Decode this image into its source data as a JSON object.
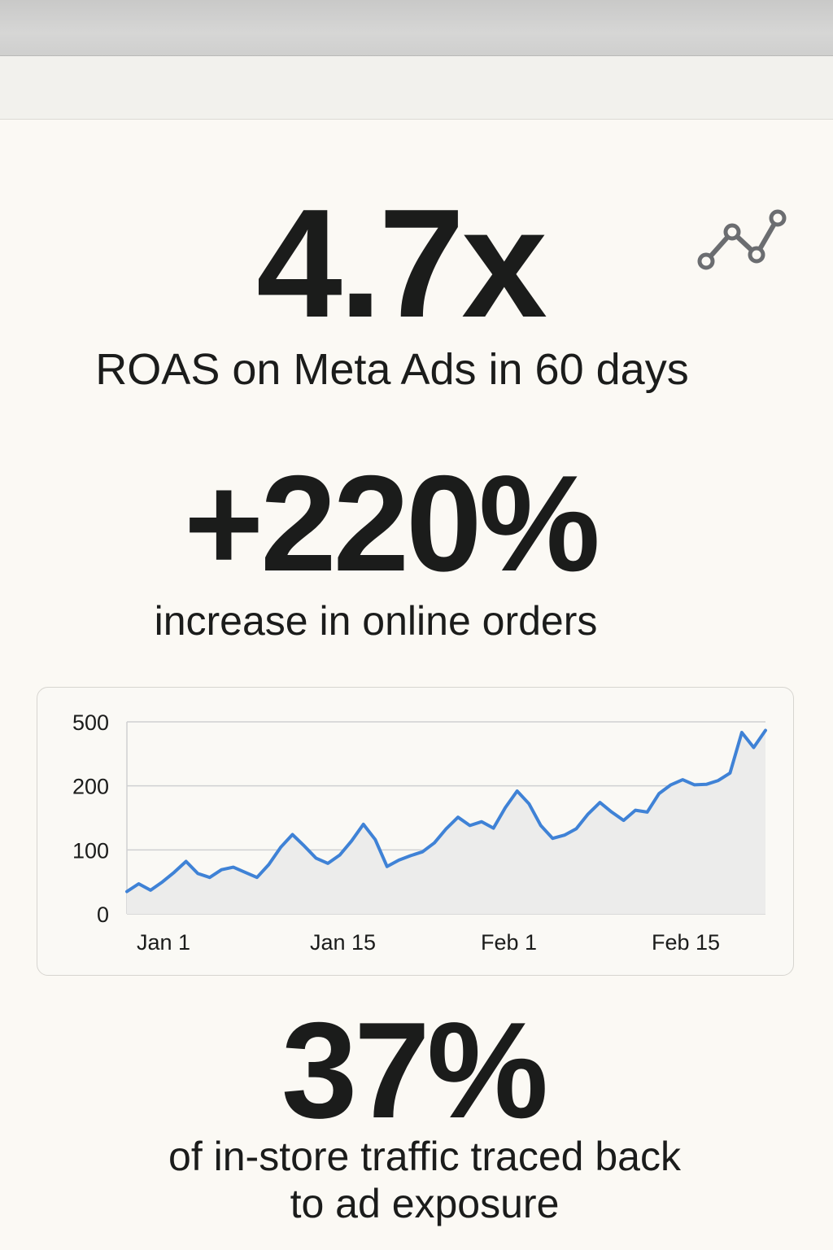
{
  "stats": [
    {
      "value": "4.7x",
      "caption": "ROAS on Meta Ads in 60 days"
    },
    {
      "value": "+220%",
      "caption": "increase in online orders"
    },
    {
      "value": "37%",
      "caption": "of in-store traffic traced back to ad exposure"
    }
  ],
  "icon": "line-chart-icon",
  "colors": {
    "line": "#3f82d6",
    "area": "#ececeb",
    "text": "#1b1c1b",
    "grid": "#cfd0d2"
  },
  "chart_data": {
    "type": "area",
    "title": "",
    "xlabel": "",
    "ylabel": "",
    "y_scale": "categorical-spaced",
    "yticks": [
      0,
      100,
      200,
      500
    ],
    "xticks": [
      "Jan 1",
      "Jan 15",
      "Feb 1",
      "Feb 15"
    ],
    "grid": true,
    "series": [
      {
        "values": [
          35,
          47,
          37,
          50,
          65,
          82,
          63,
          57,
          69,
          73,
          65,
          57,
          77,
          104,
          124,
          106,
          87,
          79,
          92,
          114,
          140,
          116,
          74,
          84,
          91,
          97,
          111,
          133,
          151,
          138,
          144,
          134,
          166,
          192,
          172,
          138,
          118,
          123,
          133,
          156,
          174,
          159,
          146,
          162,
          159,
          188,
          205,
          229,
          205,
          207,
          225,
          260,
          450,
          380,
          460
        ]
      }
    ]
  }
}
